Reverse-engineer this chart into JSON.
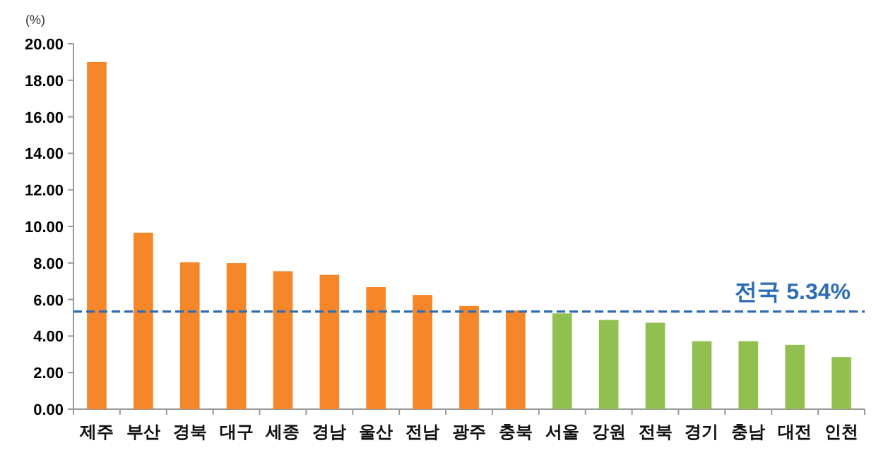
{
  "chart_data": {
    "type": "bar",
    "ylabel": "(%)",
    "categories": [
      "제주",
      "부산",
      "경북",
      "대구",
      "세종",
      "경남",
      "울산",
      "전남",
      "광주",
      "충북",
      "서울",
      "강원",
      "전북",
      "경기",
      "충남",
      "대전",
      "인천"
    ],
    "values": [
      19.0,
      9.66,
      8.04,
      7.99,
      7.55,
      7.35,
      6.68,
      6.25,
      5.65,
      5.4,
      5.24,
      4.88,
      4.73,
      3.72,
      3.72,
      3.52,
      2.85
    ],
    "colors": [
      "#f5862a",
      "#f5862a",
      "#f5862a",
      "#f5862a",
      "#f5862a",
      "#f5862a",
      "#f5862a",
      "#f5862a",
      "#f5862a",
      "#f5862a",
      "#92c050",
      "#92c050",
      "#92c050",
      "#92c050",
      "#92c050",
      "#92c050",
      "#92c050"
    ],
    "ylim": [
      0,
      20
    ],
    "yticks": [
      {
        "value": 0,
        "label": "0.00"
      },
      {
        "value": 2,
        "label": "2.00"
      },
      {
        "value": 4,
        "label": "4.00"
      },
      {
        "value": 6,
        "label": "6.00"
      },
      {
        "value": 8,
        "label": "8.00"
      },
      {
        "value": 10,
        "label": "10.00"
      },
      {
        "value": 12,
        "label": "12.00"
      },
      {
        "value": 14,
        "label": "14.00"
      },
      {
        "value": 16,
        "label": "16.00"
      },
      {
        "value": 18,
        "label": "18.00"
      },
      {
        "value": 20,
        "label": "20.00"
      }
    ],
    "ref_lines": [
      {
        "axis": "y",
        "value": 5.34,
        "label": "전국 5.34%",
        "color": "#2e6db4",
        "line_style": "dashed"
      }
    ],
    "grid": false
  }
}
